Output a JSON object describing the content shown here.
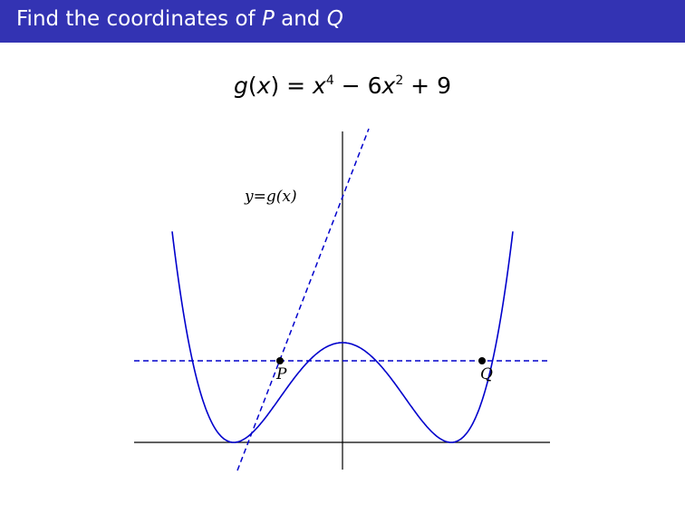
{
  "title": {
    "prefix": "Find the coordinates of ",
    "var_p": "P",
    "middle": " and ",
    "var_q": "Q"
  },
  "formula": {
    "fn": "g",
    "lparen": "(",
    "arg": "x",
    "rparen": ")",
    "eq": " = ",
    "x1": "x",
    "exp1": "4",
    "minus": " − 6",
    "x2": "x",
    "exp2": "2",
    "plus": " + 9"
  },
  "plot": {
    "curve_label": "y=g(x)",
    "point_p_label": "P",
    "point_q_label": "Q"
  },
  "colors": {
    "title_bar": "#3333b3",
    "curve": "#0000cc",
    "axes": "#000000"
  }
}
